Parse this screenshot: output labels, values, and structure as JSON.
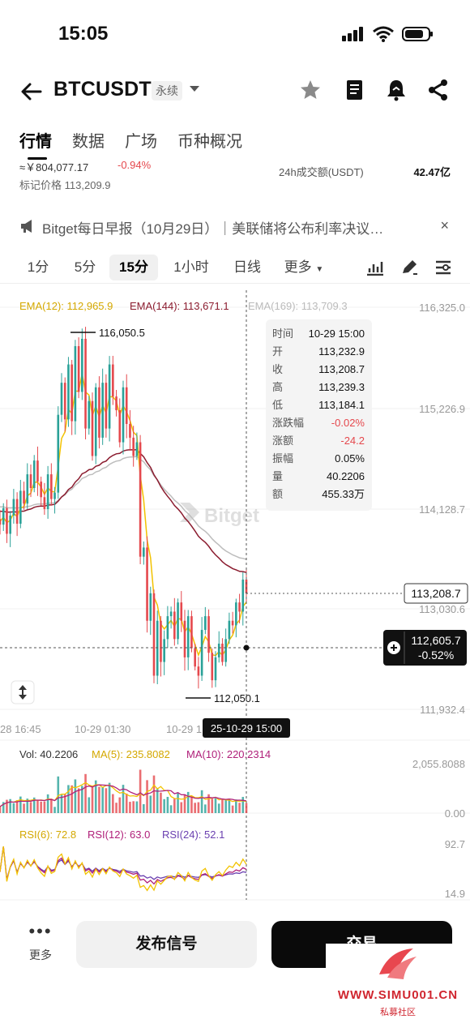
{
  "status_bar": {
    "time": "15:05",
    "icons": [
      "signal-icon",
      "wifi-icon",
      "battery-icon"
    ]
  },
  "header": {
    "symbol": "BTCUSDT",
    "contract_type": "永续",
    "icons": [
      "back-arrow-icon",
      "star-icon",
      "notebook-icon",
      "alert-bell-icon",
      "share-icon"
    ]
  },
  "tabs": [
    {
      "label": "行情",
      "active": true
    },
    {
      "label": "数据",
      "active": false
    },
    {
      "label": "广场",
      "active": false
    },
    {
      "label": "币种概况",
      "active": false
    }
  ],
  "ticker": {
    "approx_price": "≈￥804,077.17",
    "change_pct": "-0.94%",
    "mark_label": "标记价格",
    "mark_price": "113,209.9",
    "volume_label": "24h成交额(USDT)",
    "volume_value": "42.47亿"
  },
  "news": {
    "text": "Bitget每日早报（10月29日）｜美联储将公布利率决议…",
    "close": "×"
  },
  "intervals": [
    {
      "label": "1分",
      "active": false
    },
    {
      "label": "5分",
      "active": false
    },
    {
      "label": "15分",
      "active": true
    },
    {
      "label": "1小时",
      "active": false
    },
    {
      "label": "日线",
      "active": false
    },
    {
      "label": "更多",
      "active": false
    }
  ],
  "colors": {
    "up": "#2aa198",
    "down": "#e5484d",
    "ema12": "#f2c200",
    "ema144": "#8b1c2f",
    "ema169": "#bdbdbd",
    "dark": "#111111"
  },
  "chart_data": {
    "type": "candlestick",
    "symbol": "BTCUSDT",
    "interval": "15分",
    "price_axis_ticks": [
      "116,325.0",
      "115,226.9",
      "114,128.7",
      "113,030.6",
      "111,932.4"
    ],
    "price_ylim": [
      111932.4,
      116325.0
    ],
    "time_axis_ticks": [
      "28 16:45",
      "10-29 01:30",
      "10-29 1"
    ],
    "indicators": {
      "ema12": "EMA(12): 112,965.9",
      "ema144": "EMA(144): 113,671.1",
      "ema169": "EMA(169): 113,709.3"
    },
    "high_marker": "116,050.5",
    "low_marker": "112,050.1",
    "last_price_tag": "113,208.7",
    "crosshair_price": "112,605.7",
    "crosshair_pct": "-0.52%",
    "crosshair_time": "25-10-29 15:00",
    "ohlc_tooltip": [
      {
        "label": "时间",
        "value": "10-29 15:00"
      },
      {
        "label": "开",
        "value": "113,232.9"
      },
      {
        "label": "收",
        "value": "113,208.7"
      },
      {
        "label": "高",
        "value": "113,239.3"
      },
      {
        "label": "低",
        "value": "113,184.1"
      },
      {
        "label": "涨跌幅",
        "value": "-0.02%"
      },
      {
        "label": "涨额",
        "value": "-24.2"
      },
      {
        "label": "振幅",
        "value": "0.05%"
      },
      {
        "label": "量",
        "value": "40.2206"
      },
      {
        "label": "额",
        "value": "455.33万"
      }
    ],
    "close_series": [
      113950,
      114130,
      113850,
      114050,
      114230,
      113960,
      114320,
      114180,
      114500,
      114350,
      114650,
      114420,
      114250,
      114120,
      114500,
      114230,
      114300,
      115150,
      115500,
      115100,
      115700,
      115080,
      115900,
      115400,
      115980,
      115000,
      115300,
      114700,
      115450,
      114900,
      115500,
      115000,
      115700,
      115350,
      115200,
      114850,
      115450,
      115050,
      114900,
      114700,
      114850,
      113600,
      113700,
      112900,
      113200,
      112300,
      112900,
      112450,
      112700,
      112950,
      113000,
      112700,
      113100,
      112900,
      112500,
      112950,
      112600,
      112400,
      112300,
      112800,
      112950,
      112550,
      112250,
      112500,
      112650,
      112450,
      112700,
      112900,
      112850,
      113100,
      113000,
      113350,
      113200
    ],
    "volume_panel": {
      "labels": {
        "vol": "Vol: 40.2206",
        "ma5": "MA(5): 235.8082",
        "ma10": "MA(10): 220.2314"
      },
      "axis_ticks": [
        "2,055.8088",
        "0.00"
      ],
      "ylim": [
        0,
        2055.8088
      ]
    },
    "rsi_panel": {
      "labels": {
        "rsi6": "RSI(6): 72.8",
        "rsi12": "RSI(12): 63.0",
        "rsi24": "RSI(24): 52.1"
      },
      "axis_ticks": [
        "92.7",
        "14.9"
      ],
      "ylim": [
        14.9,
        92.7
      ]
    },
    "watermark": "Bitget"
  },
  "footer": {
    "more_label": "更多",
    "signal_button": "发布信号",
    "trade_button": "交易",
    "site_watermark": "WWW.SIMU001.CN",
    "site_sub": "私募社区"
  }
}
